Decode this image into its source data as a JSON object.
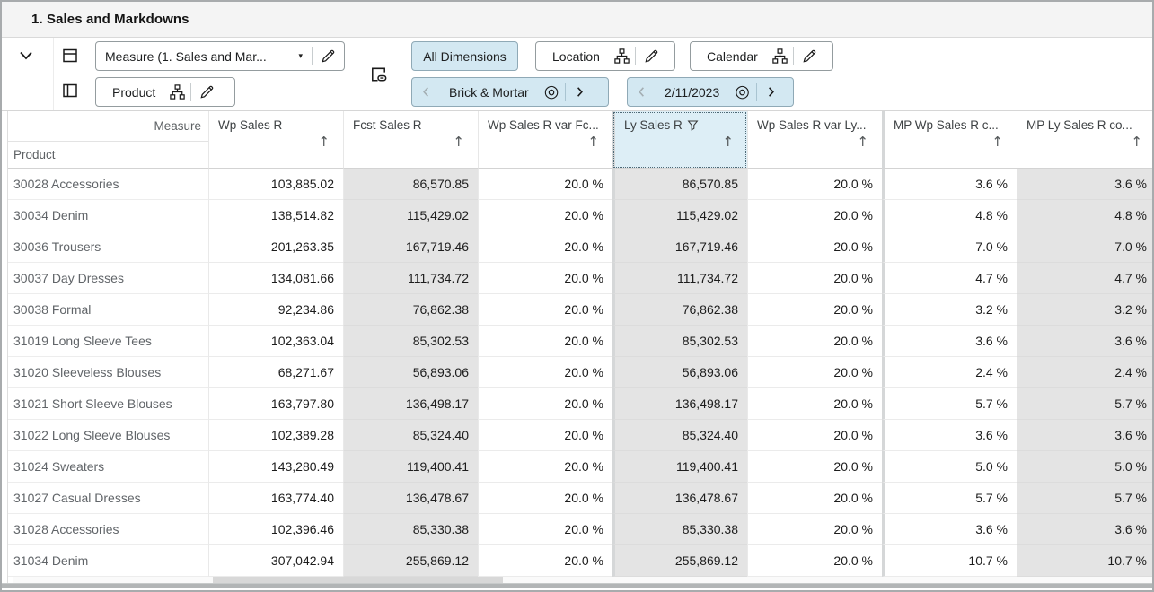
{
  "window": {
    "title": "1. Sales and Markdowns"
  },
  "toolbar": {
    "measure_dropdown": {
      "label": "Measure (1. Sales and Mar..."
    },
    "product_chip": {
      "label": "Product"
    },
    "all_dimensions_button": {
      "label": "All Dimensions"
    },
    "location_chip": {
      "label": "Location"
    },
    "calendar_chip": {
      "label": "Calendar"
    },
    "location_slice": {
      "label": "Brick & Mortar"
    },
    "calendar_slice": {
      "label": "2/11/2023"
    }
  },
  "colors": {
    "chip_blue_bg": "#d3e8f2",
    "selected_header_bg": "#ddeef6",
    "readonly_column_bg": "#e4e4e4",
    "window_frame": "#a8abad"
  },
  "table": {
    "corner": {
      "measure_label": "Measure",
      "product_label": "Product"
    },
    "columns": [
      {
        "label": "Wp Sales R",
        "readonly": false,
        "filtered": false,
        "selected": false,
        "group_start": false
      },
      {
        "label": "Fcst Sales R",
        "readonly": true,
        "filtered": false,
        "selected": false,
        "group_start": false
      },
      {
        "label": "Wp Sales R var Fc...",
        "readonly": false,
        "filtered": false,
        "selected": false,
        "group_start": false
      },
      {
        "label": "Ly Sales R",
        "readonly": true,
        "filtered": true,
        "selected": true,
        "group_start": true
      },
      {
        "label": "Wp Sales R var Ly...",
        "readonly": false,
        "filtered": false,
        "selected": false,
        "group_start": false
      },
      {
        "label": "MP Wp Sales R c...",
        "readonly": false,
        "filtered": false,
        "selected": false,
        "group_start": true
      },
      {
        "label": "MP Ly Sales R co...",
        "readonly": true,
        "filtered": false,
        "selected": false,
        "group_start": false
      }
    ],
    "rows": [
      {
        "label": "30028 Accessories",
        "values": [
          "103,885.02",
          "86,570.85",
          "20.0 %",
          "86,570.85",
          "20.0 %",
          "3.6 %",
          "3.6 %"
        ]
      },
      {
        "label": "30034 Denim",
        "values": [
          "138,514.82",
          "115,429.02",
          "20.0 %",
          "115,429.02",
          "20.0 %",
          "4.8 %",
          "4.8 %"
        ]
      },
      {
        "label": "30036 Trousers",
        "values": [
          "201,263.35",
          "167,719.46",
          "20.0 %",
          "167,719.46",
          "20.0 %",
          "7.0 %",
          "7.0 %"
        ]
      },
      {
        "label": "30037 Day Dresses",
        "values": [
          "134,081.66",
          "111,734.72",
          "20.0 %",
          "111,734.72",
          "20.0 %",
          "4.7 %",
          "4.7 %"
        ]
      },
      {
        "label": "30038 Formal",
        "values": [
          "92,234.86",
          "76,862.38",
          "20.0 %",
          "76,862.38",
          "20.0 %",
          "3.2 %",
          "3.2 %"
        ]
      },
      {
        "label": "31019 Long Sleeve Tees",
        "values": [
          "102,363.04",
          "85,302.53",
          "20.0 %",
          "85,302.53",
          "20.0 %",
          "3.6 %",
          "3.6 %"
        ]
      },
      {
        "label": "31020 Sleeveless Blouses",
        "values": [
          "68,271.67",
          "56,893.06",
          "20.0 %",
          "56,893.06",
          "20.0 %",
          "2.4 %",
          "2.4 %"
        ]
      },
      {
        "label": "31021 Short Sleeve Blouses",
        "values": [
          "163,797.80",
          "136,498.17",
          "20.0 %",
          "136,498.17",
          "20.0 %",
          "5.7 %",
          "5.7 %"
        ]
      },
      {
        "label": "31022 Long Sleeve Blouses",
        "values": [
          "102,389.28",
          "85,324.40",
          "20.0 %",
          "85,324.40",
          "20.0 %",
          "3.6 %",
          "3.6 %"
        ]
      },
      {
        "label": "31024 Sweaters",
        "values": [
          "143,280.49",
          "119,400.41",
          "20.0 %",
          "119,400.41",
          "20.0 %",
          "5.0 %",
          "5.0 %"
        ]
      },
      {
        "label": "31027 Casual Dresses",
        "values": [
          "163,774.40",
          "136,478.67",
          "20.0 %",
          "136,478.67",
          "20.0 %",
          "5.7 %",
          "5.7 %"
        ]
      },
      {
        "label": "31028 Accessories",
        "values": [
          "102,396.46",
          "85,330.38",
          "20.0 %",
          "85,330.38",
          "20.0 %",
          "3.6 %",
          "3.6 %"
        ]
      },
      {
        "label": "31034 Denim",
        "values": [
          "307,042.94",
          "255,869.12",
          "20.0 %",
          "255,869.12",
          "20.0 %",
          "10.7 %",
          "10.7 %"
        ]
      }
    ]
  },
  "icons": {
    "sort": "sort-ascending-icon",
    "filter": "filter-icon",
    "sort_glyph": "↑",
    "bullseye_glyph": "◎",
    "caret_glyph": "▾"
  }
}
